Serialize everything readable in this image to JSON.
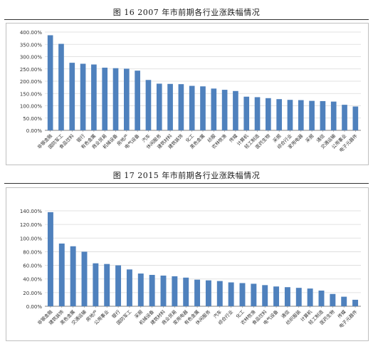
{
  "colors": {
    "bar": "#4f81bd",
    "grid": "#d9d9d9",
    "axis": "#808080",
    "text": "#333333"
  },
  "chart_data": [
    {
      "type": "bar",
      "title": "图 16   2007 年市前期各行业涨跌幅情况",
      "xlabel": "",
      "ylabel": "",
      "ylim": [
        0,
        400
      ],
      "ytick_step": 50,
      "yticks": [
        "0.00%",
        "50.00%",
        "100.00%",
        "150.00%",
        "200.00%",
        "250.00%",
        "300.00%",
        "350.00%",
        "400.00%"
      ],
      "categories": [
        "非银金融",
        "国防军工",
        "食品饮料",
        "银行",
        "有色金属",
        "商业贸易",
        "机械设备",
        "房地产",
        "电气设备",
        "汽车",
        "休闲服务",
        "建筑材料",
        "建筑装饰",
        "化工",
        "黑色金属",
        "纺服",
        "农林牧渔",
        "传媒",
        "计算机",
        "轻工制造",
        "医药生物",
        "采掘",
        "综合行业",
        "家用电器",
        "采掘",
        "通信",
        "交通运输",
        "公用事业",
        "电子元器件"
      ],
      "values": [
        387,
        352,
        275,
        271,
        268,
        255,
        253,
        251,
        243,
        205,
        190,
        189,
        188,
        181,
        179,
        170,
        165,
        160,
        137,
        135,
        131,
        127,
        124,
        123,
        120,
        119,
        117,
        104,
        97
      ],
      "grid": true,
      "legend": "none"
    },
    {
      "type": "bar",
      "title": "图 17   2015 年市前期各行业涨跌幅情况",
      "xlabel": "",
      "ylabel": "",
      "ylim": [
        0,
        140
      ],
      "ytick_step": 20,
      "yticks": [
        "0.00%",
        "20.00%",
        "40.00%",
        "60.00%",
        "80.00%",
        "100.00%",
        "120.00%",
        "140.00%"
      ],
      "categories": [
        "非银金融",
        "建筑装饰",
        "黑色金属",
        "交通运输",
        "房地产",
        "公用事业",
        "银行",
        "国防军工",
        "采掘",
        "机械设备",
        "建筑材料",
        "商业贸易",
        "家用电器",
        "有色金属",
        "休闲服务",
        "汽车",
        "综合行业",
        "化工",
        "农林牧渔",
        "食品饮料",
        "电气设备",
        "通信",
        "纺织服装",
        "计算机",
        "轻工制造",
        "医药生物",
        "传媒",
        "电子元器件"
      ],
      "values": [
        138,
        92,
        88,
        80,
        63,
        62,
        60,
        54,
        48,
        46,
        45,
        44,
        42,
        39,
        38,
        37,
        35,
        34,
        33,
        31,
        29,
        28,
        27,
        26,
        23,
        18,
        14,
        9.5
      ],
      "grid": true,
      "legend": "none"
    }
  ]
}
